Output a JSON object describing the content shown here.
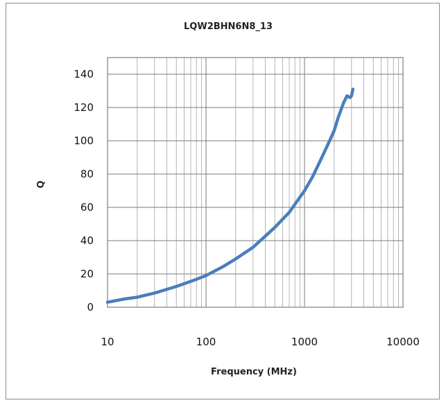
{
  "chart_data": {
    "type": "line",
    "title": "LQW2BHN6N8_13",
    "xlabel": "Frequency (MHz)",
    "ylabel": "Q",
    "xscale": "log",
    "xlim": [
      10,
      10000
    ],
    "ylim": [
      0,
      150
    ],
    "x_ticks": [
      "10",
      "100",
      "1000",
      "10000"
    ],
    "y_ticks": [
      "0",
      "20",
      "40",
      "60",
      "80",
      "100",
      "120",
      "140"
    ],
    "grid": true,
    "legend": "none",
    "series_color": "#4a7ebb",
    "series": [
      {
        "x": [
          10,
          15,
          20,
          30,
          50,
          70,
          100,
          150,
          200,
          300,
          500,
          700,
          1000,
          1200,
          1500,
          1800,
          2000,
          2200,
          2500,
          2700,
          2900,
          3000,
          3100
        ],
        "values": [
          3,
          5,
          6,
          8.5,
          12.5,
          15.5,
          19,
          24.5,
          29,
          36,
          48,
          57,
          70,
          78,
          90,
          100,
          106,
          114,
          123,
          127,
          126,
          127,
          131
        ]
      }
    ]
  }
}
